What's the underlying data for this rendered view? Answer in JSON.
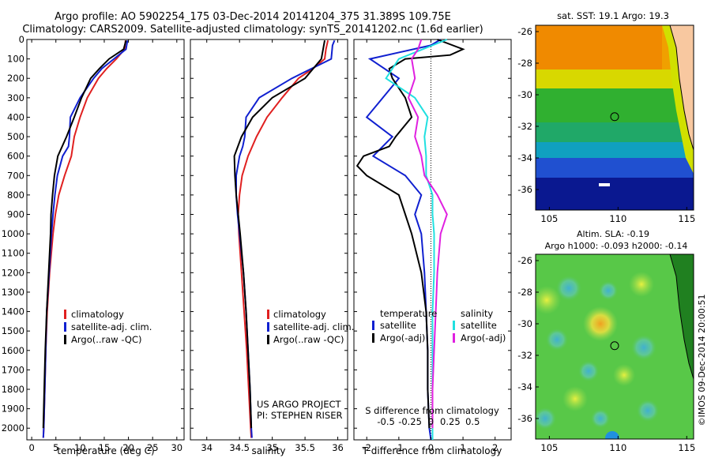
{
  "header": {
    "title_line1": "Argo profile: AO 5902254_175 03-Dec-2014 20141204_375 31.389S 109.75E",
    "title_line2": "Climatology: CARS2009. Satellite-adjusted climatology: synTS_20141202.nc (1.6d earlier)"
  },
  "colors": {
    "climatology": "#e02020",
    "satellite": "#1020d0",
    "argo": "#000000",
    "sat_salinity": "#20e0e0",
    "argo_salinity": "#e020e0"
  },
  "legend_profile": [
    {
      "label": "climatology",
      "color": "#e02020"
    },
    {
      "label": "satellite-adj. clim.",
      "color": "#1020d0"
    },
    {
      "label": "Argo(..raw -QC)",
      "color": "#000000"
    }
  ],
  "legend_diff": {
    "temperature_header": "temperature",
    "salinity_header": "salinity",
    "items_t": [
      {
        "label": "satellite",
        "color": "#1020d0"
      },
      {
        "label": "Argo(-adj)",
        "color": "#000000"
      }
    ],
    "items_s": [
      {
        "label": "satellite",
        "color": "#20e0e0"
      },
      {
        "label": "Argo(-adj)",
        "color": "#e020e0"
      }
    ]
  },
  "project_note": {
    "line1": "US ARGO PROJECT",
    "line2": "PI: STEPHEN RISER"
  },
  "maps": {
    "sst_title": "sat. SST: 19.1  Argo: 19.3",
    "sla_title_line1": "Altim. SLA: -0.19",
    "sla_title_line2": "Argo h1000: -0.093 h2000: -0.14",
    "xticks": [
      105,
      110,
      115
    ],
    "yticks": [
      -26,
      -28,
      -30,
      -32,
      -34,
      -36
    ],
    "xrange": [
      104,
      115.5
    ],
    "yrange": [
      -37.3,
      -25.6
    ],
    "float_position": {
      "lon": 109.75,
      "lat": -31.389
    }
  },
  "credit": "©IMOS 09-Dec-2014 20:00:51",
  "chart_data": [
    {
      "type": "line",
      "xlabel": "temperature (deg C)",
      "xlim": [
        -1,
        31.5
      ],
      "ylim": [
        2060,
        0
      ],
      "xticks": [
        0,
        5,
        10,
        15,
        20,
        25,
        30
      ],
      "yticks": [
        0,
        100,
        200,
        300,
        400,
        500,
        600,
        700,
        800,
        900,
        1000,
        1100,
        1200,
        1300,
        1400,
        1500,
        1600,
        1700,
        1800,
        1900,
        2000
      ],
      "series": [
        {
          "name": "climatology",
          "color": "#e02020",
          "depth": [
            5,
            50,
            100,
            150,
            200,
            300,
            400,
            500,
            600,
            700,
            800,
            900,
            1000,
            1200,
            1400,
            1600,
            1800,
            2000,
            2050
          ],
          "values": [
            19.4,
            19.2,
            17.5,
            15.5,
            13.8,
            11.5,
            10.0,
            8.8,
            8.2,
            6.8,
            5.6,
            4.9,
            4.4,
            3.7,
            3.2,
            2.9,
            2.7,
            2.5,
            2.4
          ]
        },
        {
          "name": "satellite-adj. clim.",
          "color": "#1020d0",
          "depth": [
            5,
            50,
            100,
            150,
            200,
            300,
            400,
            500,
            550,
            600,
            700,
            800,
            900,
            1000,
            1200,
            1400,
            1600,
            1800,
            2000,
            2050
          ],
          "values": [
            19.8,
            19.5,
            17.0,
            14.5,
            12.8,
            10.0,
            8.0,
            7.8,
            7.6,
            6.4,
            5.3,
            4.8,
            4.4,
            4.1,
            3.6,
            3.1,
            2.9,
            2.7,
            2.5,
            2.4
          ]
        },
        {
          "name": "Argo(..raw -QC)",
          "color": "#000000",
          "depth": [
            5,
            50,
            100,
            150,
            200,
            300,
            400,
            500,
            600,
            700,
            800,
            900,
            1000,
            1200,
            1400,
            1600,
            1800,
            2000
          ],
          "values": [
            19.5,
            19.0,
            16.0,
            14.0,
            12.2,
            10.3,
            8.8,
            7.2,
            5.4,
            4.7,
            4.3,
            4.0,
            3.9,
            3.5,
            3.1,
            2.8,
            2.6,
            2.4
          ]
        }
      ]
    },
    {
      "type": "line",
      "xlabel": "salinity",
      "xlim": [
        33.75,
        36.15
      ],
      "ylim": [
        2060,
        0
      ],
      "xticks": [
        34,
        34.5,
        35,
        35.5,
        36
      ],
      "series": [
        {
          "name": "climatology",
          "color": "#e02020",
          "depth": [
            5,
            50,
            100,
            150,
            200,
            300,
            400,
            500,
            600,
            700,
            800,
            900,
            1000,
            1200,
            1400,
            1600,
            1800,
            2000,
            2050
          ],
          "values": [
            35.85,
            35.82,
            35.8,
            35.62,
            35.4,
            35.15,
            34.92,
            34.76,
            34.63,
            34.54,
            34.5,
            34.48,
            34.49,
            34.53,
            34.57,
            34.61,
            34.64,
            34.67,
            34.68
          ]
        },
        {
          "name": "satellite-adj. clim.",
          "color": "#1020d0",
          "depth": [
            5,
            30,
            100,
            200,
            300,
            400,
            500,
            550,
            600,
            700,
            800,
            900,
            1000,
            1200,
            1400,
            1600,
            1800,
            2000,
            2050
          ],
          "values": [
            35.95,
            35.92,
            35.9,
            35.3,
            34.8,
            34.6,
            34.58,
            34.55,
            34.5,
            34.45,
            34.45,
            34.47,
            34.5,
            34.56,
            34.6,
            34.63,
            34.66,
            34.68,
            34.69
          ]
        },
        {
          "name": "Argo(..raw -QC)",
          "color": "#000000",
          "depth": [
            5,
            100,
            200,
            300,
            400,
            500,
            600,
            700,
            800,
            900,
            1000,
            1200,
            1400,
            1600,
            1800,
            2000
          ],
          "values": [
            35.8,
            35.75,
            35.5,
            35.0,
            34.7,
            34.53,
            34.42,
            34.43,
            34.45,
            34.48,
            34.51,
            34.56,
            34.6,
            34.63,
            34.66,
            34.68
          ]
        }
      ]
    },
    {
      "type": "line",
      "xlabel": "T difference from climatology",
      "xlabel2": "S difference from climatology",
      "xlim": [
        -2.4,
        2.5
      ],
      "ylim": [
        2060,
        0
      ],
      "xticks_t": [
        -2,
        -1,
        0,
        1,
        2
      ],
      "xticks_s_labels": [
        {
          "value": -0.5,
          "at": -1.4
        },
        {
          "value": -0.25,
          "at": -0.65
        },
        {
          "value": 0,
          "at": 0
        },
        {
          "value": 0.25,
          "at": 0.6
        },
        {
          "value": 0.5,
          "at": 1.3
        }
      ],
      "series": [
        {
          "name": "satellite",
          "quantity": "temperature",
          "color": "#1020d0",
          "depth": [
            0,
            30,
            100,
            200,
            300,
            400,
            500,
            600,
            700,
            800,
            900,
            1000,
            1200,
            1400,
            1600,
            1800,
            2000,
            2060
          ],
          "values": [
            0.3,
            0.0,
            -1.9,
            -1.0,
            -1.5,
            -2.0,
            -1.2,
            -1.8,
            -0.8,
            -0.3,
            -0.5,
            -0.3,
            -0.2,
            -0.15,
            -0.1,
            -0.1,
            -0.05,
            0.0
          ]
        },
        {
          "name": "Argo(-adj)",
          "quantity": "temperature",
          "color": "#000000",
          "depth": [
            0,
            50,
            80,
            100,
            150,
            200,
            300,
            400,
            500,
            550,
            600,
            650,
            700,
            800,
            900,
            1000,
            1200,
            1400,
            1600,
            1800,
            2000
          ],
          "values": [
            0.2,
            1.0,
            0.6,
            -0.8,
            -1.3,
            -1.2,
            -0.8,
            -0.6,
            -1.1,
            -1.3,
            -2.1,
            -2.3,
            -2.0,
            -1.0,
            -0.8,
            -0.6,
            -0.3,
            -0.15,
            -0.1,
            -0.1,
            -0.05
          ]
        },
        {
          "name": "satellite",
          "quantity": "salinity",
          "color": "#20e0e0",
          "depth": [
            0,
            100,
            200,
            300,
            400,
            500,
            600,
            700,
            800,
            900,
            1000,
            1200,
            1400,
            1600,
            1800,
            2000,
            2060
          ],
          "values": [
            0.5,
            -1.0,
            -1.4,
            -0.5,
            -0.1,
            -0.2,
            -0.15,
            -0.15,
            0.05,
            0.05,
            0.1,
            0.1,
            0.05,
            0.05,
            0.05,
            0.05,
            0.05
          ]
        },
        {
          "name": "Argo(-adj)",
          "quantity": "salinity",
          "color": "#e020e0",
          "depth": [
            0,
            50,
            100,
            200,
            300,
            400,
            500,
            600,
            700,
            800,
            900,
            1000,
            1200,
            1400,
            1600,
            1800,
            2000
          ],
          "values": [
            -0.3,
            -0.4,
            -0.6,
            -0.5,
            -0.7,
            -0.4,
            -0.5,
            -0.3,
            -0.2,
            0.2,
            0.5,
            0.3,
            0.2,
            0.15,
            0.1,
            0.05,
            0.05
          ]
        }
      ]
    }
  ]
}
